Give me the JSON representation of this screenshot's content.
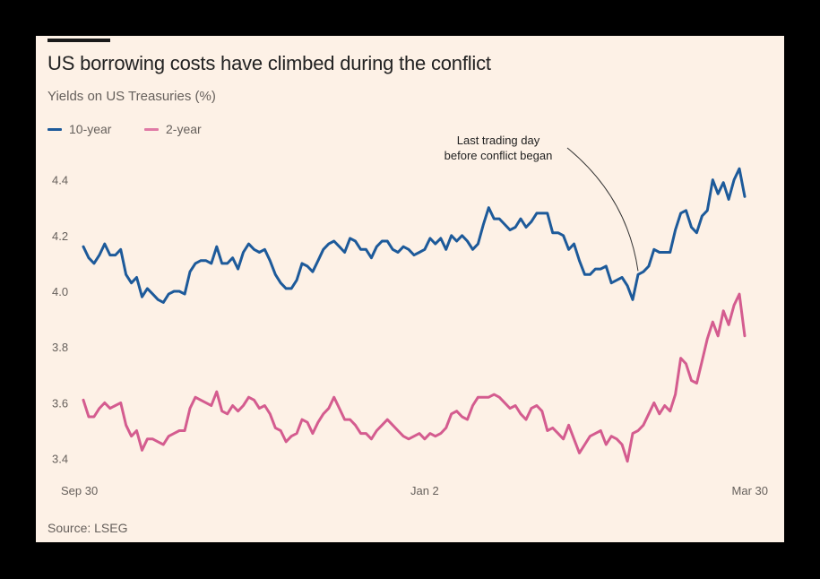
{
  "chart_data": {
    "type": "line",
    "title": "US borrowing costs have climbed during the conflict",
    "subtitle": "Yields on US Treasuries (%)",
    "source": "Source: LSEG",
    "xlabel": "",
    "ylabel": "Yields on US Treasuries (%)",
    "ylim": [
      3.35,
      4.5
    ],
    "yticks": [
      4.4,
      4.2,
      4.0,
      3.8,
      3.6,
      3.4
    ],
    "ytick_labels": [
      "4.4",
      "4.2",
      "4.0",
      "3.8",
      "3.6",
      "3.4"
    ],
    "xticks": [
      {
        "label": "Sep 30",
        "index": 0
      },
      {
        "label": "Jan 2",
        "index": 64
      },
      {
        "label": "Mar 30",
        "index": 124
      }
    ],
    "grid": false,
    "legend_position": "top-left",
    "annotation": {
      "lines": [
        "Last trading day",
        "before conflict began"
      ],
      "index": 104
    },
    "series": [
      {
        "name": "10-year",
        "color": "#1d5a9a",
        "values": [
          4.16,
          4.12,
          4.1,
          4.13,
          4.17,
          4.13,
          4.13,
          4.15,
          4.06,
          4.03,
          4.05,
          3.98,
          4.01,
          3.99,
          3.97,
          3.96,
          3.99,
          4.0,
          4.0,
          3.99,
          4.07,
          4.1,
          4.11,
          4.11,
          4.1,
          4.16,
          4.1,
          4.1,
          4.12,
          4.08,
          4.14,
          4.17,
          4.15,
          4.14,
          4.15,
          4.11,
          4.06,
          4.03,
          4.01,
          4.01,
          4.04,
          4.1,
          4.09,
          4.07,
          4.11,
          4.15,
          4.17,
          4.18,
          4.16,
          4.14,
          4.19,
          4.18,
          4.15,
          4.15,
          4.12,
          4.16,
          4.18,
          4.18,
          4.15,
          4.14,
          4.16,
          4.15,
          4.13,
          4.14,
          4.15,
          4.19,
          4.17,
          4.19,
          4.15,
          4.2,
          4.18,
          4.2,
          4.18,
          4.15,
          4.17,
          4.24,
          4.3,
          4.26,
          4.26,
          4.24,
          4.22,
          4.23,
          4.26,
          4.23,
          4.25,
          4.28,
          4.28,
          4.28,
          4.21,
          4.21,
          4.2,
          4.15,
          4.17,
          4.11,
          4.06,
          4.06,
          4.08,
          4.08,
          4.09,
          4.03,
          4.04,
          4.05,
          4.02,
          3.97,
          4.06,
          4.07,
          4.09,
          4.15,
          4.14,
          4.14,
          4.14,
          4.22,
          4.28,
          4.29,
          4.23,
          4.21,
          4.27,
          4.29,
          4.4,
          4.35,
          4.39,
          4.33,
          4.4,
          4.44,
          4.34
        ]
      },
      {
        "name": "2-year",
        "color": "#d45c8f",
        "values": [
          3.61,
          3.55,
          3.55,
          3.58,
          3.6,
          3.58,
          3.59,
          3.6,
          3.52,
          3.48,
          3.5,
          3.43,
          3.47,
          3.47,
          3.46,
          3.45,
          3.48,
          3.49,
          3.5,
          3.5,
          3.58,
          3.62,
          3.61,
          3.6,
          3.59,
          3.64,
          3.57,
          3.56,
          3.59,
          3.57,
          3.59,
          3.62,
          3.61,
          3.58,
          3.59,
          3.56,
          3.51,
          3.5,
          3.46,
          3.48,
          3.49,
          3.54,
          3.53,
          3.49,
          3.53,
          3.56,
          3.58,
          3.62,
          3.58,
          3.54,
          3.54,
          3.52,
          3.49,
          3.49,
          3.47,
          3.5,
          3.52,
          3.54,
          3.52,
          3.5,
          3.48,
          3.47,
          3.48,
          3.49,
          3.47,
          3.49,
          3.48,
          3.49,
          3.51,
          3.56,
          3.57,
          3.55,
          3.54,
          3.59,
          3.62,
          3.62,
          3.62,
          3.63,
          3.62,
          3.6,
          3.58,
          3.59,
          3.56,
          3.54,
          3.58,
          3.59,
          3.57,
          3.5,
          3.51,
          3.49,
          3.47,
          3.52,
          3.47,
          3.42,
          3.45,
          3.48,
          3.49,
          3.5,
          3.45,
          3.48,
          3.47,
          3.45,
          3.39,
          3.49,
          3.5,
          3.52,
          3.56,
          3.6,
          3.56,
          3.59,
          3.57,
          3.63,
          3.76,
          3.74,
          3.68,
          3.67,
          3.75,
          3.83,
          3.89,
          3.84,
          3.93,
          3.88,
          3.95,
          3.99,
          3.84
        ]
      }
    ]
  }
}
